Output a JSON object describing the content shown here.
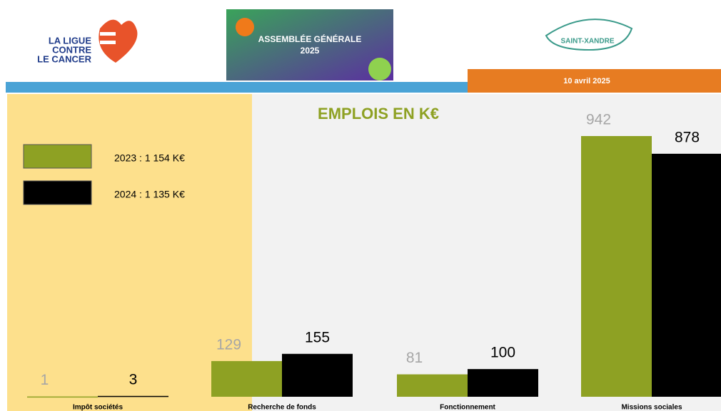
{
  "header": {
    "org_lines": [
      "LA LIGUE",
      "CONTRE",
      "LE CANCER"
    ],
    "event_lines": [
      "ASSEMBLÉE GÉNÉRALE",
      "2025"
    ],
    "town": "SAINT-XANDRE",
    "date": "10 avril 2025"
  },
  "chart_data": {
    "type": "bar",
    "title": "EMPLOIS EN K€",
    "categories": [
      "Impôt sociétés",
      "Recherche de fonds",
      "Fonctionnement",
      "Missions sociales"
    ],
    "series": [
      {
        "name": "2023 : 1 154 K€",
        "color": "#8ea123",
        "values": [
          1,
          129,
          81,
          942
        ]
      },
      {
        "name": "2024 : 1 135 K€",
        "color": "#000000",
        "values": [
          3,
          155,
          100,
          878
        ]
      }
    ]
  }
}
